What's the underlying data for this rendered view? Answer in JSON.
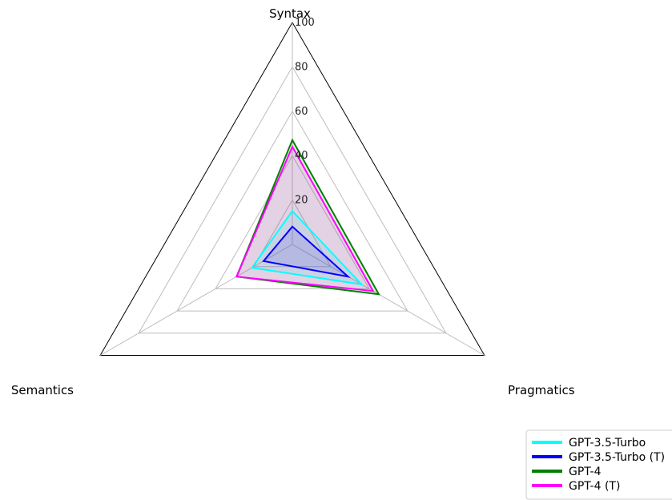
{
  "chart_data": {
    "type": "radar",
    "axes": [
      "Syntax",
      "Pragmatics",
      "Semantics"
    ],
    "rlim": [
      0,
      100
    ],
    "rticks": [
      20,
      40,
      60,
      80,
      100
    ],
    "tick_labels": [
      "20",
      "40",
      "60",
      "80",
      "100"
    ],
    "grid": true,
    "legend_position": "bottom-right",
    "series": [
      {
        "name": "GPT-3.5-Turbo",
        "color": "#00ffff",
        "values": [
          15,
          36,
          21
        ]
      },
      {
        "name": "GPT-3.5-Turbo (T)",
        "color": "#0000ff",
        "values": [
          8,
          29,
          15
        ]
      },
      {
        "name": "GPT-4",
        "color": "#008000",
        "values": [
          47,
          45,
          29
        ]
      },
      {
        "name": "GPT-4 (T)",
        "color": "#ff00ff",
        "values": [
          44,
          42,
          29
        ]
      }
    ]
  }
}
